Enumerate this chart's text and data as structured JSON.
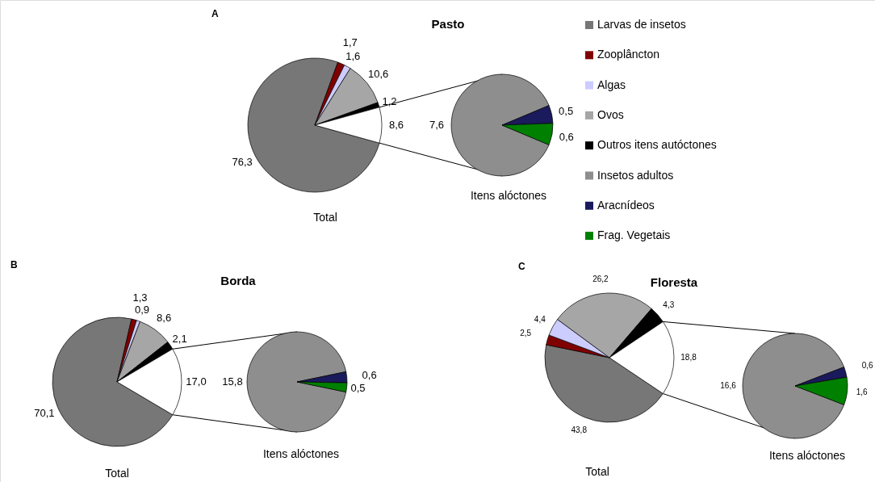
{
  "chart_data": [
    {
      "type": "pie",
      "title": "Pasto",
      "annotations": [
        "A"
      ],
      "xlabel": "Total",
      "legend": "right",
      "categories": [
        "Larvas de insetos",
        "Zooplâncton",
        "Algas",
        "Ovos",
        "Outros itens autóctones",
        null
      ],
      "values": [
        76.3,
        1.7,
        1.6,
        10.6,
        1.2,
        8.6
      ],
      "value_labels": [
        "76,3",
        "1,7",
        "1,6",
        "10,6",
        "1,2",
        "8,6"
      ],
      "colors": [
        "#777777",
        "#800000",
        "#ccccff",
        "#a6a6a6",
        "#000000",
        "#ffffff"
      ]
    },
    {
      "type": "pie",
      "xlabel": "Itens alóctones",
      "legend": "right",
      "categories": [
        "Insetos adultos",
        "Aracnídeos",
        "Frag. Vegetais"
      ],
      "values": [
        7.6,
        0.5,
        0.6
      ],
      "value_labels": [
        "7,6",
        "0,5",
        "0,6"
      ],
      "colors": [
        "#8e8e8e",
        "#1a1a5c",
        "#008000"
      ]
    },
    {
      "type": "pie",
      "title": "Borda",
      "annotations": [
        "B"
      ],
      "xlabel": "Total",
      "categories": [
        null,
        null,
        null,
        null,
        null,
        null
      ],
      "values": [
        70.1,
        1.3,
        0.9,
        8.6,
        2.1,
        17.0
      ],
      "value_labels": [
        "70,1",
        "1,3",
        "0,9",
        "8,6",
        "2,1",
        "17,0"
      ],
      "colors": [
        "#777777",
        "#800000",
        "#ccccff",
        "#a6a6a6",
        "#000000",
        "#ffffff"
      ]
    },
    {
      "type": "pie",
      "xlabel": "Itens alóctones",
      "categories": [
        null,
        null,
        null
      ],
      "values": [
        15.8,
        0.6,
        0.5
      ],
      "value_labels": [
        "15,8",
        "0,6",
        "0,5"
      ],
      "colors": [
        "#8e8e8e",
        "#1a1a5c",
        "#008000"
      ]
    },
    {
      "type": "pie",
      "title": "Floresta",
      "annotations": [
        "C"
      ],
      "xlabel": "Total",
      "categories": [
        null,
        null,
        null,
        null,
        null,
        null
      ],
      "values": [
        43.8,
        2.5,
        4.4,
        26.2,
        4.3,
        18.8
      ],
      "value_labels": [
        "43,8",
        "2,5",
        "4,4",
        "26,2",
        "4,3",
        "18,8"
      ],
      "colors": [
        "#777777",
        "#800000",
        "#ccccff",
        "#a6a6a6",
        "#000000",
        "#ffffff"
      ]
    },
    {
      "type": "pie",
      "xlabel": "Itens alóctones",
      "categories": [
        null,
        null,
        null
      ],
      "values": [
        16.6,
        0.6,
        1.6
      ],
      "value_labels": [
        "16,6",
        "0,6",
        "1,6"
      ],
      "colors": [
        "#8e8e8e",
        "#1a1a5c",
        "#008000"
      ]
    }
  ]
}
